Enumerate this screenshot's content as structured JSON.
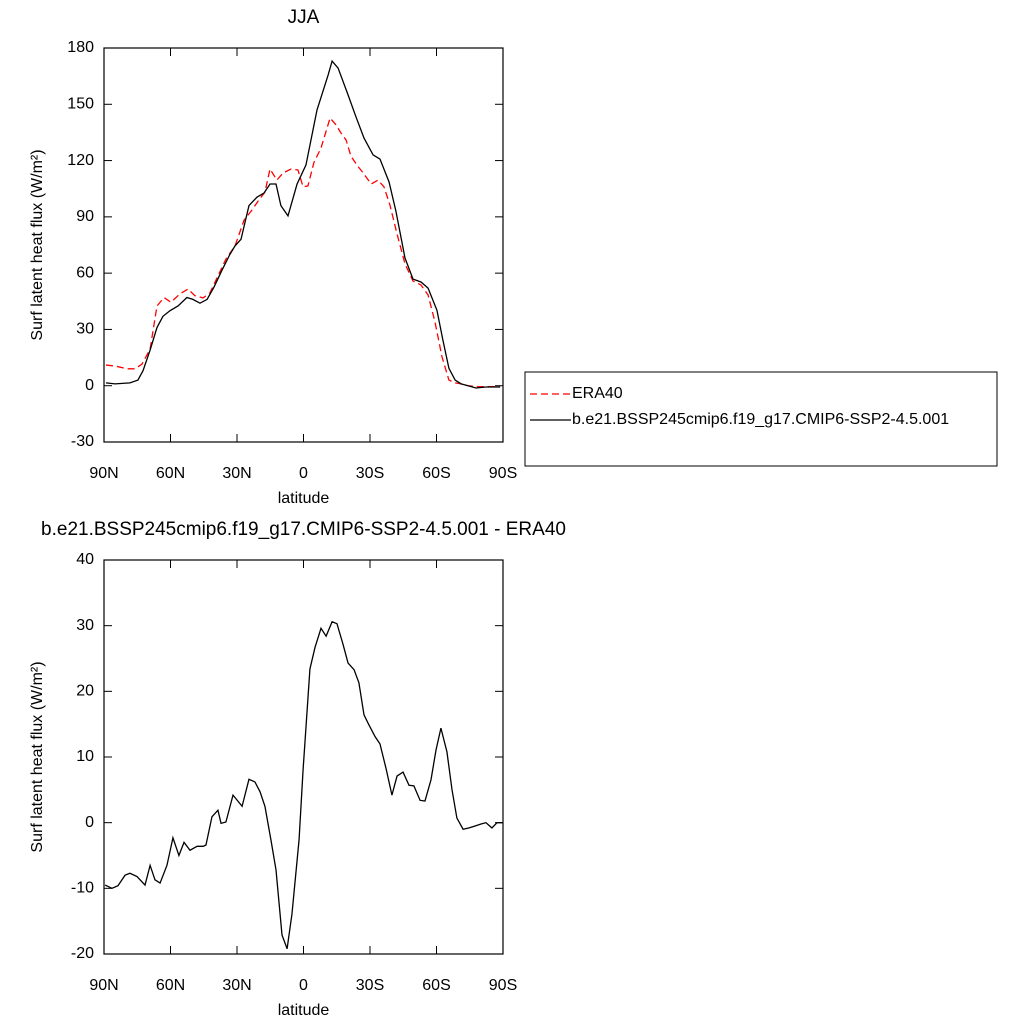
{
  "chart_data": [
    {
      "type": "line",
      "title": "JJA",
      "xlabel": "latitude",
      "ylabel": "Surf latent heat flux (W/m²)",
      "xlim": [
        90,
        -90
      ],
      "xticks": [
        {
          "value": 90,
          "label": "90N"
        },
        {
          "value": 60,
          "label": "60N"
        },
        {
          "value": 30,
          "label": "30N"
        },
        0,
        {
          "value": -30,
          "label": "30S"
        },
        {
          "value": -60,
          "label": "60S"
        },
        {
          "value": -90,
          "label": "90S"
        }
      ],
      "ylim": [
        -30,
        180
      ],
      "yticks": [
        -30,
        0,
        30,
        60,
        90,
        120,
        150,
        180
      ],
      "legend": "right",
      "series": [
        {
          "name": "ERA40",
          "color": "#ff0000",
          "dash": "dashed",
          "x": [
            89.1,
            85.0,
            79.6,
            76.0,
            72.9,
            69.2,
            66.1,
            62.9,
            59.8,
            55.7,
            52.1,
            49.0,
            45.3,
            42.2,
            38.6,
            35.0,
            30.9,
            26.8,
            23.2,
            20.5,
            17.4,
            15.1,
            12.0,
            9.2,
            5.6,
            2.5,
            0.2,
            -2.0,
            -4.7,
            -7.9,
            -12.0,
            -14.7,
            -16.9,
            -19.2,
            -21.4,
            -24.1,
            -27.3,
            -30.5,
            -33.6,
            -36.3,
            -39.0,
            -42.2,
            -45.8,
            -49.4,
            -53.0,
            -56.2,
            -59.3,
            -62.5,
            -65.6,
            -68.4,
            -71.1,
            -74.2,
            -78.7,
            -88.7
          ],
          "values": [
            11,
            10.5,
            9,
            9,
            11.5,
            19.5,
            42.5,
            47,
            44.5,
            49,
            51.5,
            48,
            46.8,
            49.5,
            58.5,
            67.5,
            74.5,
            88.3,
            93.7,
            98.4,
            103.2,
            115.5,
            109.6,
            113.4,
            115.5,
            115,
            106,
            106.5,
            119,
            126.7,
            142.7,
            139,
            134.7,
            131,
            122.4,
            117.6,
            112.8,
            107.5,
            109.6,
            106,
            96.3,
            80.9,
            64.9,
            55.8,
            53.7,
            48.4,
            34,
            15.3,
            3,
            1.5,
            1,
            0,
            -0.5,
            -0.5
          ]
        },
        {
          "name": "b.e21.BSSP245cmip6.f19_g17.CMIP6-SSP2-4.5.001",
          "color": "#000000",
          "dash": "solid",
          "x": [
            89.1,
            85.0,
            78.3,
            74.7,
            72.4,
            69.2,
            66.1,
            63.4,
            60.2,
            56.6,
            52.6,
            49.9,
            46.7,
            43.5,
            40.4,
            36.8,
            33.2,
            30.9,
            28.2,
            24.6,
            21.0,
            17.8,
            15.1,
            12.4,
            10.2,
            7.0,
            2.9,
            -1.1,
            -6.1,
            -11.1,
            -12.9,
            -15.6,
            -20.1,
            -23.7,
            -27.3,
            -31.4,
            -34.5,
            -38.6,
            -41.7,
            -45.8,
            -49.4,
            -53.0,
            -56.2,
            -60.2,
            -62.9,
            -65.6,
            -68.4,
            -71.1,
            -74.2,
            -77.8,
            -82.3,
            -88.7
          ],
          "values": [
            1.5,
            1,
            1.5,
            3,
            8,
            19,
            31,
            37,
            40,
            42.5,
            47,
            46,
            44,
            46,
            52.5,
            61.5,
            70,
            74.5,
            78,
            96,
            100.5,
            102.7,
            107.5,
            107.5,
            96,
            90.5,
            107.5,
            117.6,
            147,
            165.6,
            173,
            169.3,
            155,
            143.2,
            132,
            123,
            120.8,
            108.6,
            93,
            68,
            56.8,
            55.3,
            52,
            40.2,
            24.2,
            9.3,
            3,
            1,
            0,
            -1.2,
            -0.7,
            -0.7
          ]
        }
      ]
    },
    {
      "type": "line",
      "title": "b.e21.BSSP245cmip6.f19_g17.CMIP6-SSP2-4.5.001 - ERA40",
      "xlabel": "latitude",
      "ylabel": "Surf latent heat flux (W/m²)",
      "xlim": [
        90,
        -90
      ],
      "xticks": [
        {
          "value": 90,
          "label": "90N"
        },
        {
          "value": 60,
          "label": "60N"
        },
        {
          "value": 30,
          "label": "30N"
        },
        0,
        {
          "value": -30,
          "label": "30S"
        },
        {
          "value": -60,
          "label": "60S"
        },
        {
          "value": -90,
          "label": "90S"
        }
      ],
      "ylim": [
        -20,
        40
      ],
      "yticks": [
        -20,
        -10,
        0,
        10,
        20,
        30,
        40
      ],
      "color": "#000000",
      "x": [
        89.5,
        86.4,
        83.7,
        80.5,
        78.3,
        75.1,
        71.5,
        69.2,
        67.0,
        64.7,
        61.6,
        58.9,
        56.2,
        53.9,
        51.2,
        48.0,
        45.3,
        44.0,
        41.3,
        38.6,
        37.2,
        35.0,
        31.8,
        27.7,
        24.6,
        21.9,
        19.6,
        17.4,
        14.7,
        12.4,
        9.7,
        7.4,
        5.2,
        2.0,
        0.2,
        -2.9,
        -5.2,
        -7.9,
        -10.2,
        -12.9,
        -15.1,
        -17.8,
        -20.1,
        -22.8,
        -25.0,
        -27.3,
        -29.5,
        -32.3,
        -34.5,
        -37.2,
        -39.9,
        -42.2,
        -44.9,
        -47.6,
        -49.8,
        -52.6,
        -54.8,
        -57.5,
        -59.8,
        -62.0,
        -64.7,
        -67.0,
        -69.2,
        -72.0,
        -74.7,
        -77.4,
        -80.1,
        -82.3,
        -85.0,
        -87.3,
        -90
      ],
      "values": [
        -9.5,
        -10,
        -9.6,
        -8,
        -7.7,
        -8.2,
        -9.5,
        -6.5,
        -8.7,
        -9.2,
        -6.5,
        -2.3,
        -5,
        -3,
        -4.2,
        -3.6,
        -3.6,
        -3.4,
        0.9,
        1.9,
        -0.1,
        0.1,
        4.2,
        2.5,
        6.6,
        6.2,
        4.7,
        2.5,
        -2.6,
        -7.2,
        -17.1,
        -19.2,
        -13.9,
        -2.6,
        8,
        23.4,
        26.7,
        29.6,
        28.4,
        30.6,
        30.3,
        27.2,
        24.3,
        23.3,
        21.3,
        16.4,
        14.9,
        13.1,
        12,
        8.3,
        4.2,
        7.1,
        7.7,
        5.7,
        5.6,
        3.4,
        3.3,
        6.5,
        11.1,
        14.4,
        10.8,
        5,
        0.7,
        -1,
        -0.8,
        -0.5,
        -0.2,
        0,
        -0.8,
        0,
        0
      ]
    }
  ]
}
